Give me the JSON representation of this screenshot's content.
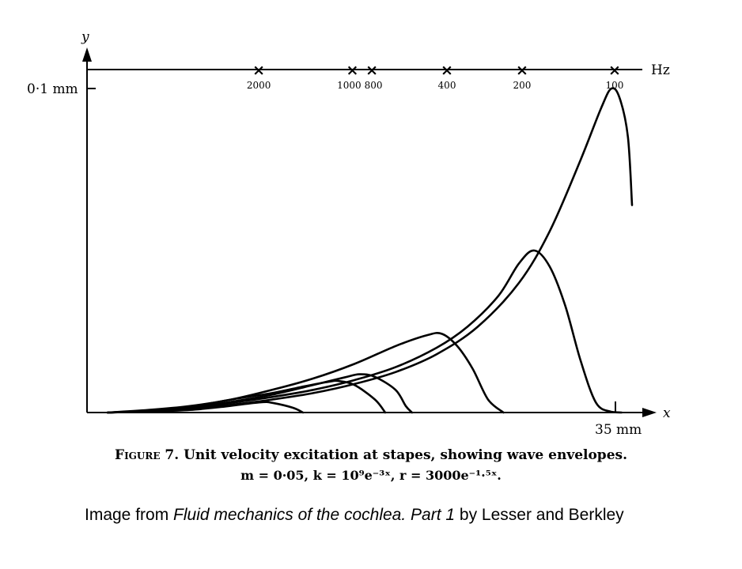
{
  "chart_data": {
    "type": "line",
    "xlabel": "x",
    "ylabel": "y",
    "x_end_label": "35 mm",
    "y_tick_label": "0·1 mm",
    "freq_axis_unit": "Hz",
    "freq_markers": [
      {
        "label": "2000",
        "x_mm": 16.7
      },
      {
        "label": "1000",
        "x_mm": 25.8
      },
      {
        "label": "800",
        "x_mm": 27.7
      },
      {
        "label": "400",
        "x_mm": 35.0
      },
      {
        "label": "200",
        "x_mm": 42.3
      },
      {
        "label": "100",
        "x_mm": 51.3
      }
    ],
    "xlim": [
      0,
      53
    ],
    "ylim": [
      0,
      0.1
    ],
    "series": [
      {
        "points": [
          [
            2,
            0
          ],
          [
            6,
            0.0003
          ],
          [
            10,
            0.0008
          ],
          [
            13,
            0.0017
          ],
          [
            15,
            0.0025
          ],
          [
            17,
            0.0032
          ],
          [
            18,
            0.003
          ],
          [
            20,
            0.0015
          ],
          [
            21,
            0
          ]
        ]
      },
      {
        "points": [
          [
            2,
            0
          ],
          [
            6,
            0.0006
          ],
          [
            10,
            0.0018
          ],
          [
            14,
            0.004
          ],
          [
            18,
            0.006
          ],
          [
            21,
            0.008
          ],
          [
            23.5,
            0.0095
          ],
          [
            24.5,
            0.0097
          ],
          [
            26,
            0.0085
          ],
          [
            28,
            0.004
          ],
          [
            29,
            0
          ]
        ]
      },
      {
        "points": [
          [
            2,
            0
          ],
          [
            6,
            0.0005
          ],
          [
            10,
            0.0015
          ],
          [
            14,
            0.0033
          ],
          [
            18,
            0.0055
          ],
          [
            22,
            0.0085
          ],
          [
            25,
            0.0108
          ],
          [
            26.5,
            0.0118
          ],
          [
            28,
            0.011
          ],
          [
            30,
            0.007
          ],
          [
            31,
            0.002
          ],
          [
            31.6,
            0
          ]
        ]
      },
      {
        "points": [
          [
            2,
            0
          ],
          [
            6,
            0.0008
          ],
          [
            10,
            0.002
          ],
          [
            14,
            0.004
          ],
          [
            18,
            0.007
          ],
          [
            22,
            0.0105
          ],
          [
            26,
            0.015
          ],
          [
            30,
            0.0205
          ],
          [
            33,
            0.0238
          ],
          [
            34.5,
            0.0243
          ],
          [
            36,
            0.0205
          ],
          [
            37.5,
            0.0135
          ],
          [
            39,
            0.004
          ],
          [
            40.5,
            0
          ]
        ]
      },
      {
        "points": [
          [
            2,
            0
          ],
          [
            6,
            0.0005
          ],
          [
            10,
            0.0015
          ],
          [
            14,
            0.003
          ],
          [
            18,
            0.0048
          ],
          [
            22,
            0.007
          ],
          [
            26,
            0.01
          ],
          [
            30,
            0.014
          ],
          [
            34,
            0.02
          ],
          [
            37,
            0.0265
          ],
          [
            40,
            0.036
          ],
          [
            42,
            0.046
          ],
          [
            43.5,
            0.05
          ],
          [
            45,
            0.045
          ],
          [
            46.5,
            0.033
          ],
          [
            48,
            0.016
          ],
          [
            49.5,
            0.003
          ],
          [
            51,
            0.0002
          ],
          [
            52,
            0
          ]
        ]
      },
      {
        "points": [
          [
            2,
            0
          ],
          [
            6,
            0.0004
          ],
          [
            10,
            0.0012
          ],
          [
            14,
            0.0024
          ],
          [
            18,
            0.004
          ],
          [
            22,
            0.006
          ],
          [
            26,
            0.0088
          ],
          [
            30,
            0.0125
          ],
          [
            34,
            0.018
          ],
          [
            38,
            0.0265
          ],
          [
            42,
            0.04
          ],
          [
            45,
            0.056
          ],
          [
            48,
            0.078
          ],
          [
            50,
            0.094
          ],
          [
            51,
            0.1
          ],
          [
            51.8,
            0.097
          ],
          [
            52.6,
            0.085
          ],
          [
            53,
            0.064
          ]
        ]
      }
    ]
  },
  "caption": {
    "figure_word": "Figure",
    "figure_rest": " 7. Unit velocity excitation at stapes, showing wave envelopes.",
    "equations": "m = 0·05, k = 10⁹e⁻³ˣ, r = 3000e⁻¹·⁵ˣ."
  },
  "credit": {
    "prefix": "Image from ",
    "title": "Fluid mechanics of the cochlea. Part 1",
    "suffix": " by Lesser and Berkley"
  }
}
